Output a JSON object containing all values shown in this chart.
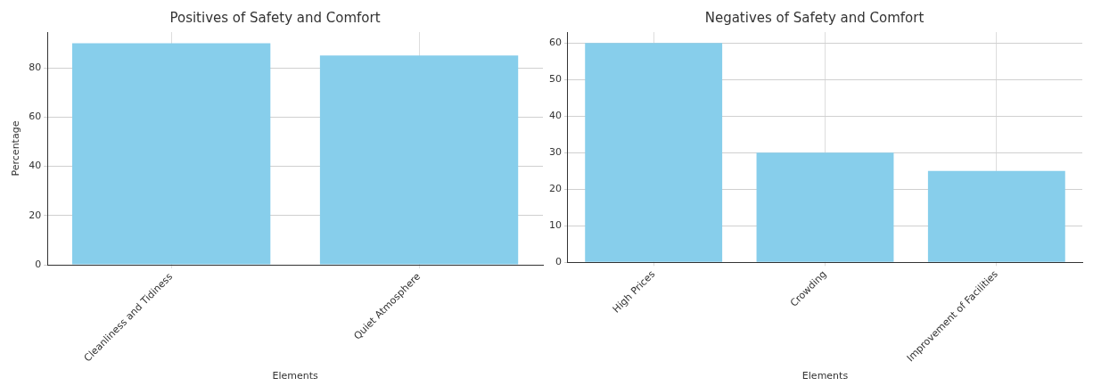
{
  "chart_data": [
    {
      "type": "bar",
      "title": "Positives of Safety and Comfort",
      "xlabel": "Elements",
      "ylabel": "Percentage",
      "categories": [
        "Cleanliness and Tidiness",
        "Quiet Atmosphere"
      ],
      "values": [
        90,
        85
      ],
      "color": "#87ceeb",
      "ylim": [
        0,
        94.5
      ],
      "yticks": [
        0,
        20,
        40,
        60,
        80
      ],
      "grid": true
    },
    {
      "type": "bar",
      "title": "Negatives of Safety and Comfort",
      "xlabel": "Elements",
      "categories": [
        "High Prices",
        "Crowding",
        "Improvement of Facilities"
      ],
      "values": [
        60,
        30,
        25
      ],
      "color": "#87ceeb",
      "ylim": [
        0,
        63
      ],
      "yticks": [
        0,
        10,
        20,
        30,
        40,
        50,
        60
      ],
      "grid": true
    }
  ]
}
